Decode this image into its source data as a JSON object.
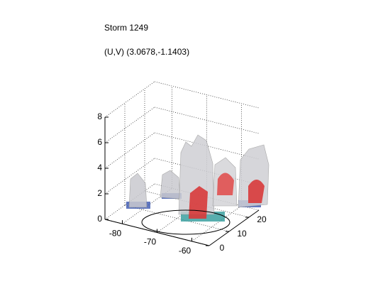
{
  "chart_data": {
    "type": "isosurface3d",
    "title": "Storm 1249",
    "subtitle": "(U,V) (3.0678,-1.1403)",
    "xlim": [
      -85,
      -55
    ],
    "xticks": [
      -80,
      -70,
      -60
    ],
    "ylim": [
      0,
      25
    ],
    "yticks": [
      0,
      10,
      20
    ],
    "zlim": [
      0,
      8
    ],
    "zticks": [
      0,
      2,
      4,
      6,
      8
    ],
    "grid": true
  }
}
